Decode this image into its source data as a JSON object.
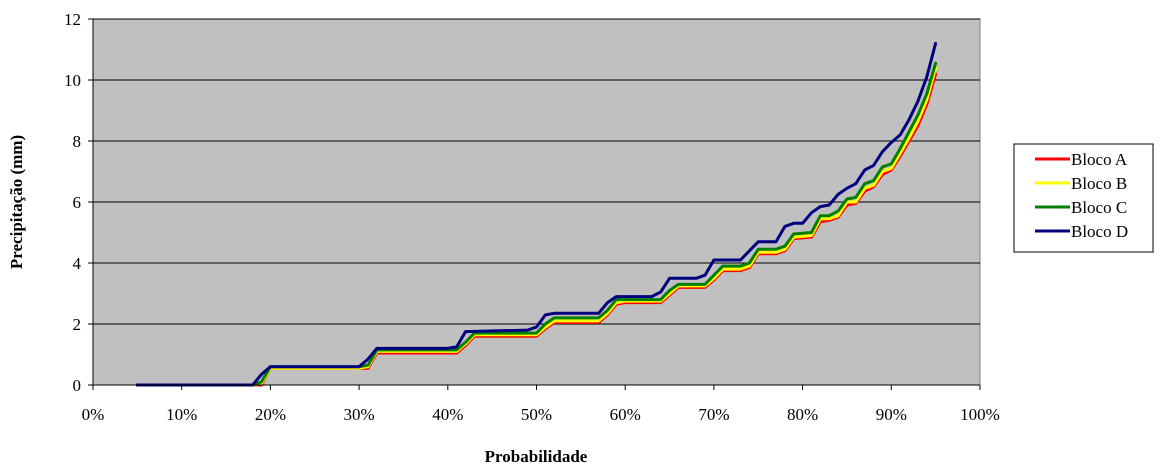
{
  "chart_data": {
    "type": "line",
    "title": "",
    "xlabel": "Probabilidade",
    "ylabel": "Precipitação (mm)",
    "xlim": [
      0,
      100
    ],
    "ylim": [
      0,
      12
    ],
    "x_ticks": [
      0,
      10,
      20,
      30,
      40,
      50,
      60,
      70,
      80,
      90,
      100
    ],
    "x_tick_labels": [
      "0%",
      "10%",
      "20%",
      "30%",
      "40%",
      "50%",
      "60%",
      "70%",
      "80%",
      "90%",
      "100%"
    ],
    "y_ticks": [
      0,
      2,
      4,
      6,
      8,
      10,
      12
    ],
    "y_tick_labels": [
      "0",
      "2",
      "4",
      "6",
      "8",
      "10",
      "12"
    ],
    "grid": "horizontal",
    "legend_position": "right",
    "plot_background": "#c0c0c0",
    "series": [
      {
        "name": "Bloco A",
        "color": "#ff0000",
        "points": [
          [
            5,
            0
          ],
          [
            18,
            0
          ],
          [
            19,
            0
          ],
          [
            20,
            0.55
          ],
          [
            30,
            0.55
          ],
          [
            31,
            0.55
          ],
          [
            32,
            1.05
          ],
          [
            41,
            1.05
          ],
          [
            42,
            1.3
          ],
          [
            43,
            1.6
          ],
          [
            50,
            1.6
          ],
          [
            51,
            1.85
          ],
          [
            52,
            2.05
          ],
          [
            57,
            2.05
          ],
          [
            58,
            2.3
          ],
          [
            59,
            2.65
          ],
          [
            60,
            2.7
          ],
          [
            64,
            2.7
          ],
          [
            65,
            2.95
          ],
          [
            66,
            3.2
          ],
          [
            69,
            3.2
          ],
          [
            70,
            3.45
          ],
          [
            71,
            3.75
          ],
          [
            73,
            3.75
          ],
          [
            74,
            3.85
          ],
          [
            75,
            4.3
          ],
          [
            77,
            4.3
          ],
          [
            78,
            4.4
          ],
          [
            79,
            4.8
          ],
          [
            81,
            4.85
          ],
          [
            82,
            5.35
          ],
          [
            83,
            5.4
          ],
          [
            84,
            5.5
          ],
          [
            85,
            5.9
          ],
          [
            86,
            5.95
          ],
          [
            87,
            6.35
          ],
          [
            88,
            6.5
          ],
          [
            89,
            6.9
          ],
          [
            90,
            7.05
          ],
          [
            91,
            7.5
          ],
          [
            92,
            8.0
          ],
          [
            93,
            8.5
          ],
          [
            94,
            9.2
          ],
          [
            95,
            10.2
          ]
        ]
      },
      {
        "name": "Bloco B",
        "color": "#ffff00",
        "points": [
          [
            5,
            0
          ],
          [
            18,
            0
          ],
          [
            19,
            0.05
          ],
          [
            20,
            0.55
          ],
          [
            30,
            0.55
          ],
          [
            31,
            0.6
          ],
          [
            32,
            1.1
          ],
          [
            41,
            1.1
          ],
          [
            42,
            1.35
          ],
          [
            43,
            1.65
          ],
          [
            50,
            1.65
          ],
          [
            51,
            1.9
          ],
          [
            52,
            2.1
          ],
          [
            57,
            2.1
          ],
          [
            58,
            2.35
          ],
          [
            59,
            2.7
          ],
          [
            60,
            2.75
          ],
          [
            64,
            2.75
          ],
          [
            65,
            3.0
          ],
          [
            66,
            3.25
          ],
          [
            69,
            3.25
          ],
          [
            70,
            3.5
          ],
          [
            71,
            3.8
          ],
          [
            73,
            3.8
          ],
          [
            74,
            3.9
          ],
          [
            75,
            4.35
          ],
          [
            77,
            4.35
          ],
          [
            78,
            4.45
          ],
          [
            79,
            4.85
          ],
          [
            81,
            4.9
          ],
          [
            82,
            5.45
          ],
          [
            83,
            5.45
          ],
          [
            84,
            5.55
          ],
          [
            85,
            6.0
          ],
          [
            86,
            6.0
          ],
          [
            87,
            6.45
          ],
          [
            88,
            6.55
          ],
          [
            89,
            7.0
          ],
          [
            90,
            7.1
          ],
          [
            91,
            7.6
          ],
          [
            92,
            8.1
          ],
          [
            93,
            8.65
          ],
          [
            94,
            9.35
          ],
          [
            95,
            10.4
          ]
        ]
      },
      {
        "name": "Bloco C",
        "color": "#008000",
        "points": [
          [
            5,
            0
          ],
          [
            18,
            0
          ],
          [
            19,
            0.1
          ],
          [
            20,
            0.6
          ],
          [
            30,
            0.6
          ],
          [
            31,
            0.65
          ],
          [
            32,
            1.15
          ],
          [
            41,
            1.15
          ],
          [
            42,
            1.4
          ],
          [
            43,
            1.7
          ],
          [
            50,
            1.7
          ],
          [
            51,
            2.0
          ],
          [
            52,
            2.2
          ],
          [
            57,
            2.2
          ],
          [
            58,
            2.45
          ],
          [
            59,
            2.8
          ],
          [
            60,
            2.8
          ],
          [
            64,
            2.8
          ],
          [
            65,
            3.1
          ],
          [
            66,
            3.3
          ],
          [
            69,
            3.3
          ],
          [
            70,
            3.6
          ],
          [
            71,
            3.9
          ],
          [
            73,
            3.9
          ],
          [
            74,
            4.0
          ],
          [
            75,
            4.45
          ],
          [
            77,
            4.45
          ],
          [
            78,
            4.55
          ],
          [
            79,
            4.95
          ],
          [
            81,
            5.0
          ],
          [
            82,
            5.55
          ],
          [
            83,
            5.55
          ],
          [
            84,
            5.7
          ],
          [
            85,
            6.1
          ],
          [
            86,
            6.15
          ],
          [
            87,
            6.6
          ],
          [
            88,
            6.7
          ],
          [
            89,
            7.15
          ],
          [
            90,
            7.25
          ],
          [
            91,
            7.75
          ],
          [
            92,
            8.3
          ],
          [
            93,
            8.85
          ],
          [
            94,
            9.55
          ],
          [
            95,
            10.55
          ]
        ]
      },
      {
        "name": "Bloco D",
        "color": "#000080",
        "points": [
          [
            5,
            0
          ],
          [
            18,
            0
          ],
          [
            19,
            0.35
          ],
          [
            20,
            0.6
          ],
          [
            30,
            0.6
          ],
          [
            31,
            0.85
          ],
          [
            32,
            1.2
          ],
          [
            40,
            1.2
          ],
          [
            41,
            1.25
          ],
          [
            42,
            1.75
          ],
          [
            49,
            1.8
          ],
          [
            50,
            1.9
          ],
          [
            51,
            2.3
          ],
          [
            52,
            2.35
          ],
          [
            57,
            2.35
          ],
          [
            58,
            2.7
          ],
          [
            59,
            2.9
          ],
          [
            63,
            2.9
          ],
          [
            64,
            3.05
          ],
          [
            65,
            3.5
          ],
          [
            68,
            3.5
          ],
          [
            69,
            3.6
          ],
          [
            70,
            4.1
          ],
          [
            73,
            4.1
          ],
          [
            74,
            4.4
          ],
          [
            75,
            4.7
          ],
          [
            77,
            4.7
          ],
          [
            78,
            5.2
          ],
          [
            79,
            5.3
          ],
          [
            80,
            5.3
          ],
          [
            81,
            5.65
          ],
          [
            82,
            5.85
          ],
          [
            83,
            5.9
          ],
          [
            84,
            6.25
          ],
          [
            85,
            6.45
          ],
          [
            86,
            6.6
          ],
          [
            87,
            7.05
          ],
          [
            88,
            7.2
          ],
          [
            89,
            7.65
          ],
          [
            90,
            7.95
          ],
          [
            91,
            8.2
          ],
          [
            92,
            8.7
          ],
          [
            93,
            9.3
          ],
          [
            94,
            10.1
          ],
          [
            95,
            11.2
          ]
        ]
      }
    ]
  }
}
